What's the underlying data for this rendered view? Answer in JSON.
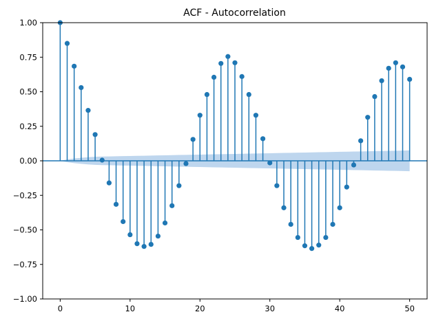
{
  "chart_data": {
    "type": "scatter",
    "title": "ACF - Autocorrelation",
    "xlabel": "",
    "ylabel": "",
    "xlim": [
      -2.5,
      52.5
    ],
    "ylim": [
      -1.0,
      1.0
    ],
    "xticks": [
      0,
      10,
      20,
      30,
      40,
      50
    ],
    "xtick_labels": [
      "0",
      "10",
      "20",
      "30",
      "40",
      "50"
    ],
    "yticks": [
      -1.0,
      -0.75,
      -0.5,
      -0.25,
      0.0,
      0.25,
      0.5,
      0.75,
      1.0
    ],
    "ytick_labels": [
      "−1.00",
      "−0.75",
      "−0.50",
      "−0.25",
      "0.00",
      "0.25",
      "0.50",
      "0.75",
      "1.00"
    ],
    "grid": false,
    "lags": [
      0,
      1,
      2,
      3,
      4,
      5,
      6,
      7,
      8,
      9,
      10,
      11,
      12,
      13,
      14,
      15,
      16,
      17,
      18,
      19,
      20,
      21,
      22,
      23,
      24,
      25,
      26,
      27,
      28,
      29,
      30,
      31,
      32,
      33,
      34,
      35,
      36,
      37,
      38,
      39,
      40,
      41,
      42,
      43,
      44,
      45,
      46,
      47,
      48,
      49,
      50
    ],
    "values": [
      1.0,
      0.85,
      0.685,
      0.53,
      0.365,
      0.19,
      0.005,
      -0.16,
      -0.315,
      -0.44,
      -0.535,
      -0.6,
      -0.62,
      -0.605,
      -0.545,
      -0.45,
      -0.325,
      -0.18,
      -0.02,
      0.155,
      0.33,
      0.48,
      0.605,
      0.705,
      0.755,
      0.71,
      0.61,
      0.48,
      0.33,
      0.16,
      -0.015,
      -0.18,
      -0.34,
      -0.46,
      -0.555,
      -0.615,
      -0.635,
      -0.61,
      -0.555,
      -0.46,
      -0.34,
      -0.19,
      -0.03,
      0.145,
      0.315,
      0.465,
      0.58,
      0.67,
      0.71,
      0.68,
      0.59
    ],
    "confidence_band_halfwidth": [
      0.0,
      0.01,
      0.017,
      0.022,
      0.026,
      0.029,
      0.031,
      0.032,
      0.033,
      0.034,
      0.035,
      0.036,
      0.037,
      0.038,
      0.039,
      0.04,
      0.041,
      0.042,
      0.043,
      0.044,
      0.045,
      0.046,
      0.047,
      0.048,
      0.049,
      0.05,
      0.051,
      0.052,
      0.053,
      0.054,
      0.055,
      0.056,
      0.057,
      0.058,
      0.059,
      0.06,
      0.061,
      0.062,
      0.063,
      0.064,
      0.065,
      0.066,
      0.067,
      0.068,
      0.069,
      0.07,
      0.071,
      0.072,
      0.073,
      0.074,
      0.075
    ],
    "colors": {
      "marker": "#1f77b4",
      "band": "#a8c8e8"
    }
  }
}
